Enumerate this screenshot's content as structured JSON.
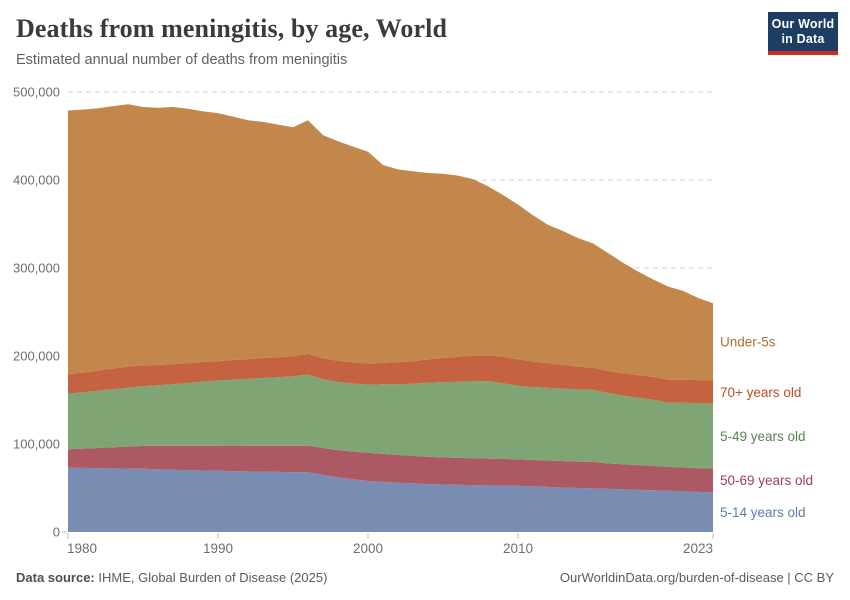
{
  "header": {
    "title": "Deaths from meningitis, by age, World",
    "subtitle": "Estimated annual number of deaths from meningitis"
  },
  "logo": {
    "line1": "Our World",
    "line2": "in Data",
    "bg_color": "#1D3D63",
    "bar_color": "#CE2B23"
  },
  "footer": {
    "source_label": "Data source:",
    "source_text": " IHME, Global Burden of Disease (2025)",
    "right_text": "OurWorldinData.org/burden-of-disease | CC BY"
  },
  "chart_data": {
    "type": "area",
    "stacked": true,
    "title": "Deaths from meningitis, by age, World",
    "xlabel": "",
    "ylabel": "Estimated annual number of deaths",
    "grid": "dashed-horizontal",
    "legend_position": "right-of-plot-inline",
    "ylim": [
      0,
      500000
    ],
    "xlim": [
      1980,
      2023
    ],
    "y_ticks": [
      {
        "value": 0,
        "label": "0"
      },
      {
        "value": 100000,
        "label": "100,000"
      },
      {
        "value": 200000,
        "label": "200,000"
      },
      {
        "value": 300000,
        "label": "300,000"
      },
      {
        "value": 400000,
        "label": "400,000"
      },
      {
        "value": 500000,
        "label": "500,000"
      }
    ],
    "x_ticks": [
      {
        "value": 1980,
        "label": "1980"
      },
      {
        "value": 1990,
        "label": "1990"
      },
      {
        "value": 2000,
        "label": "2000"
      },
      {
        "value": 2010,
        "label": "2010"
      },
      {
        "value": 2023,
        "label": "2023"
      }
    ],
    "x": [
      1980,
      1981,
      1982,
      1983,
      1984,
      1985,
      1986,
      1987,
      1988,
      1989,
      1990,
      1991,
      1992,
      1993,
      1994,
      1995,
      1996,
      1997,
      1998,
      1999,
      2000,
      2001,
      2002,
      2003,
      2004,
      2005,
      2006,
      2007,
      2008,
      2009,
      2010,
      2011,
      2012,
      2013,
      2014,
      2015,
      2016,
      2017,
      2018,
      2019,
      2020,
      2021,
      2022,
      2023
    ],
    "series": [
      {
        "name": "5-14 years old",
        "color": "#7287AF",
        "label_color": "#5D7CA9",
        "values": [
          73000,
          72800,
          72500,
          72300,
          72000,
          71800,
          71300,
          70800,
          70300,
          69900,
          69500,
          69200,
          68900,
          68600,
          68300,
          68000,
          68000,
          65000,
          62000,
          60000,
          58000,
          57000,
          56000,
          55300,
          54600,
          54000,
          53600,
          53300,
          53000,
          52700,
          52500,
          51800,
          51200,
          50600,
          50000,
          49500,
          49000,
          48500,
          48000,
          47500,
          47000,
          46300,
          45600,
          45000
        ]
      },
      {
        "name": "50-69 years old",
        "color": "#A9505C",
        "label_color": "#A33E53",
        "values": [
          21000,
          22000,
          23000,
          24000,
          25000,
          26000,
          26500,
          27000,
          27500,
          28000,
          28500,
          29000,
          29200,
          29400,
          29600,
          29800,
          30000,
          30500,
          31000,
          31500,
          32000,
          31800,
          31500,
          31200,
          31000,
          30800,
          30600,
          30500,
          30400,
          30300,
          30200,
          30000,
          30000,
          30000,
          30000,
          30000,
          29000,
          28500,
          28000,
          27500,
          27000,
          27000,
          27000,
          27000
        ]
      },
      {
        "name": "5-49 years old",
        "color": "#77A06B",
        "label_color": "#588352",
        "values": [
          63000,
          64000,
          65000,
          66000,
          67000,
          68000,
          69000,
          70000,
          71500,
          73000,
          74000,
          75000,
          76000,
          77000,
          78000,
          79000,
          81000,
          78000,
          77500,
          77400,
          77400,
          79000,
          80500,
          82000,
          84000,
          85500,
          86500,
          87500,
          88000,
          86000,
          83500,
          83000,
          82500,
          82300,
          82000,
          82000,
          80000,
          78000,
          76500,
          75500,
          73000,
          73500,
          73800,
          74000
        ]
      },
      {
        "name": "70+ years old",
        "color": "#C25A38",
        "label_color": "#BE4D26",
        "values": [
          22000,
          22500,
          23000,
          23500,
          24000,
          23500,
          23000,
          22800,
          22500,
          22300,
          22000,
          22200,
          22400,
          22600,
          22800,
          23000,
          23500,
          23800,
          24000,
          24000,
          24000,
          24500,
          25000,
          25500,
          26500,
          27500,
          28500,
          29000,
          29500,
          30000,
          30000,
          29000,
          28000,
          27000,
          26000,
          25000,
          25200,
          25500,
          25800,
          26000,
          26200,
          26300,
          26200,
          26000
        ]
      },
      {
        "name": "Under-5s",
        "color": "#C08142",
        "label_color": "#B0702B",
        "values": [
          300000,
          298700,
          298000,
          298200,
          298000,
          293700,
          292200,
          292400,
          289200,
          284800,
          282000,
          276600,
          271500,
          268400,
          264300,
          260200,
          265500,
          253700,
          249500,
          245100,
          240600,
          224700,
          219000,
          216000,
          211900,
          209200,
          205800,
          200700,
          192100,
          184000,
          175800,
          166200,
          157300,
          152100,
          146000,
          141500,
          133800,
          125500,
          117700,
          110500,
          105800,
          100900,
          93400,
          88000
        ]
      }
    ]
  }
}
